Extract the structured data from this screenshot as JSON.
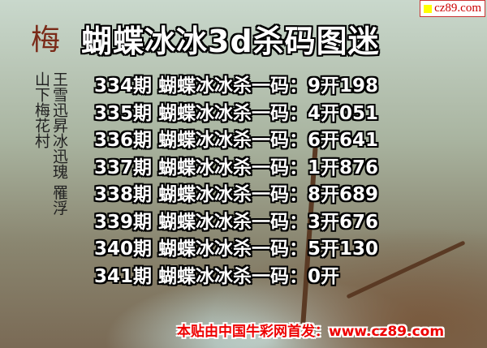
{
  "badge": {
    "text": "cz89.com",
    "icon": "yellow-square-icon"
  },
  "logo": {
    "char": "梅",
    "poem": "王雪迅昇冰迅瑰 罹浮山下梅花村"
  },
  "title": "蝴蝶冰冰3d杀码图迷",
  "rows": [
    {
      "period": "334期",
      "label": "蝴蝶冰冰杀一码：",
      "result": "9开198"
    },
    {
      "period": "335期",
      "label": "蝴蝶冰冰杀一码：",
      "result": "4开051"
    },
    {
      "period": "336期",
      "label": "蝴蝶冰冰杀一码：",
      "result": "6开641"
    },
    {
      "period": "337期",
      "label": "蝴蝶冰冰杀一码：",
      "result": "1开876"
    },
    {
      "period": "338期",
      "label": "蝴蝶冰冰杀一码：",
      "result": "8开689"
    },
    {
      "period": "339期",
      "label": "蝴蝶冰冰杀一码：",
      "result": "3开676"
    },
    {
      "period": "340期",
      "label": "蝴蝶冰冰杀一码：",
      "result": "5开130"
    },
    {
      "period": "341期",
      "label": "蝴蝶冰冰杀一码：",
      "result": "0开"
    }
  ],
  "footer": "本贴由中国牛彩网首发：www.cz89.com"
}
